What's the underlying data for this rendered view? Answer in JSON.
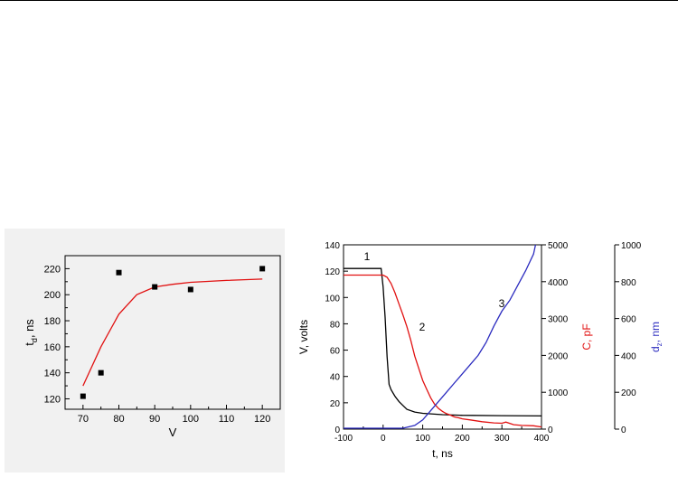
{
  "chart_data": [
    {
      "type": "scatter",
      "title": "",
      "xlabel": "V",
      "ylabel_main": "t",
      "ylabel_sub": "d",
      "ylabel_unit": ", ns",
      "xlim": [
        65,
        125
      ],
      "ylim": [
        112,
        230
      ],
      "xticks": [
        70,
        80,
        90,
        100,
        110,
        120
      ],
      "yticks": [
        120,
        140,
        160,
        180,
        200,
        220
      ],
      "scatter_points": {
        "x": [
          70,
          75,
          80,
          90,
          100,
          120
        ],
        "y": [
          122,
          140,
          217,
          206,
          204,
          220
        ]
      },
      "fit_line": {
        "color": "#e11111",
        "x": [
          70,
          75,
          80,
          85,
          90,
          95,
          100,
          110,
          120
        ],
        "y": [
          130,
          160,
          185,
          200,
          206,
          208,
          209.5,
          211,
          212
        ]
      },
      "grid": false
    },
    {
      "type": "line",
      "title": "",
      "xlabel": "t, ns",
      "xlim": [
        -100,
        400
      ],
      "xticks": [
        -100,
        0,
        100,
        200,
        300,
        400
      ],
      "y_axes": [
        {
          "label": "V, volts",
          "color": "#000000",
          "lim": [
            0,
            140
          ],
          "ticks": [
            0,
            20,
            40,
            60,
            80,
            100,
            120,
            140
          ]
        },
        {
          "label": "C, pF",
          "color": "#e11111",
          "lim": [
            0,
            5000
          ],
          "ticks": [
            0,
            1000,
            2000,
            3000,
            4000,
            5000
          ]
        },
        {
          "label_main": "d",
          "label_sub": "z",
          "label_unit": ", nm",
          "color": "#2b2bbf",
          "lim": [
            0,
            1000
          ],
          "ticks": [
            0,
            200,
            400,
            600,
            800,
            1000
          ]
        }
      ],
      "series": [
        {
          "label": "1",
          "axis": 0,
          "color": "#000000",
          "x": [
            -100,
            -5,
            0,
            5,
            10,
            15,
            20,
            30,
            40,
            50,
            60,
            80,
            100,
            150,
            200,
            300,
            400
          ],
          "y": [
            122,
            122,
            108,
            85,
            55,
            34,
            30,
            25,
            21,
            18,
            15,
            13,
            12,
            11,
            10.5,
            10.2,
            10
          ]
        },
        {
          "label": "2",
          "axis": 1,
          "color": "#e11111",
          "x": [
            -100,
            0,
            10,
            20,
            30,
            40,
            50,
            60,
            70,
            80,
            90,
            100,
            110,
            120,
            130,
            140,
            150,
            160,
            170,
            180,
            190,
            200,
            220,
            250,
            280,
            300,
            310,
            330,
            350,
            380,
            400
          ],
          "y": [
            4180,
            4180,
            4120,
            3950,
            3700,
            3400,
            3100,
            2780,
            2400,
            1980,
            1650,
            1320,
            1080,
            850,
            680,
            560,
            480,
            420,
            380,
            330,
            310,
            280,
            250,
            200,
            170,
            160,
            190,
            120,
            100,
            90,
            60
          ]
        },
        {
          "label": "3",
          "axis": 2,
          "color": "#2b2bbf",
          "x": [
            -100,
            50,
            80,
            100,
            120,
            140,
            160,
            180,
            200,
            220,
            240,
            260,
            280,
            300,
            320,
            340,
            360,
            380,
            385
          ],
          "y": [
            5,
            5,
            20,
            50,
            100,
            150,
            200,
            250,
            300,
            350,
            400,
            470,
            560,
            640,
            700,
            780,
            860,
            950,
            1000
          ]
        }
      ],
      "grid": false
    }
  ]
}
